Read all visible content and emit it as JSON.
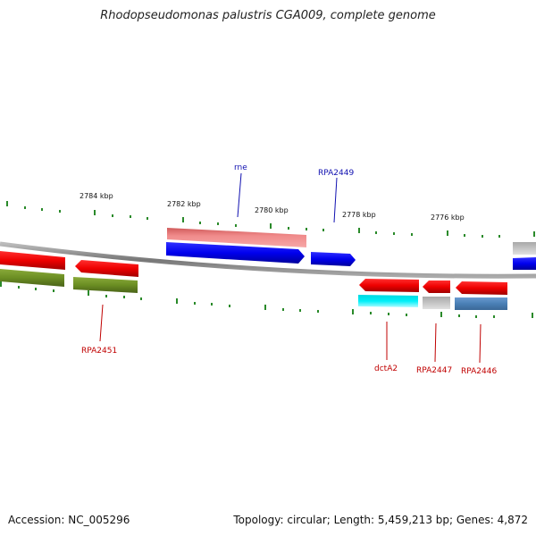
{
  "title": "Rhodopseudomonas palustris CGA009, complete genome",
  "footer": {
    "accession": "Accession: NC_005296",
    "summary": "Topology: circular; Length: 5,459,213 bp; Genes: 4,872"
  },
  "ticks": [
    {
      "label": "2784 kbp"
    },
    {
      "label": "2782 kbp"
    },
    {
      "label": "2780 kbp"
    },
    {
      "label": "2778 kbp"
    },
    {
      "label": "2776 kbp"
    }
  ],
  "gene_labels": [
    {
      "name": "rne",
      "color": "#1010b0"
    },
    {
      "name": "RPA2449",
      "color": "#1010b0"
    },
    {
      "name": "RPA2451",
      "color": "#c00000"
    },
    {
      "name": "dctA2",
      "color": "#c00000"
    },
    {
      "name": "RPA2447",
      "color": "#c00000"
    },
    {
      "name": "RPA2446",
      "color": "#c00000"
    }
  ],
  "colors": {
    "forward_cds": "#0000ee",
    "reverse_cds": "#ee0000",
    "backbone": "#888888",
    "ticks": "#2a8a2a",
    "rna_pink": "#ee8888",
    "olive": "#6b8e23",
    "cyan": "#00e5ee",
    "gray": "#bbbbbb",
    "steel": "#4a7fb5"
  }
}
